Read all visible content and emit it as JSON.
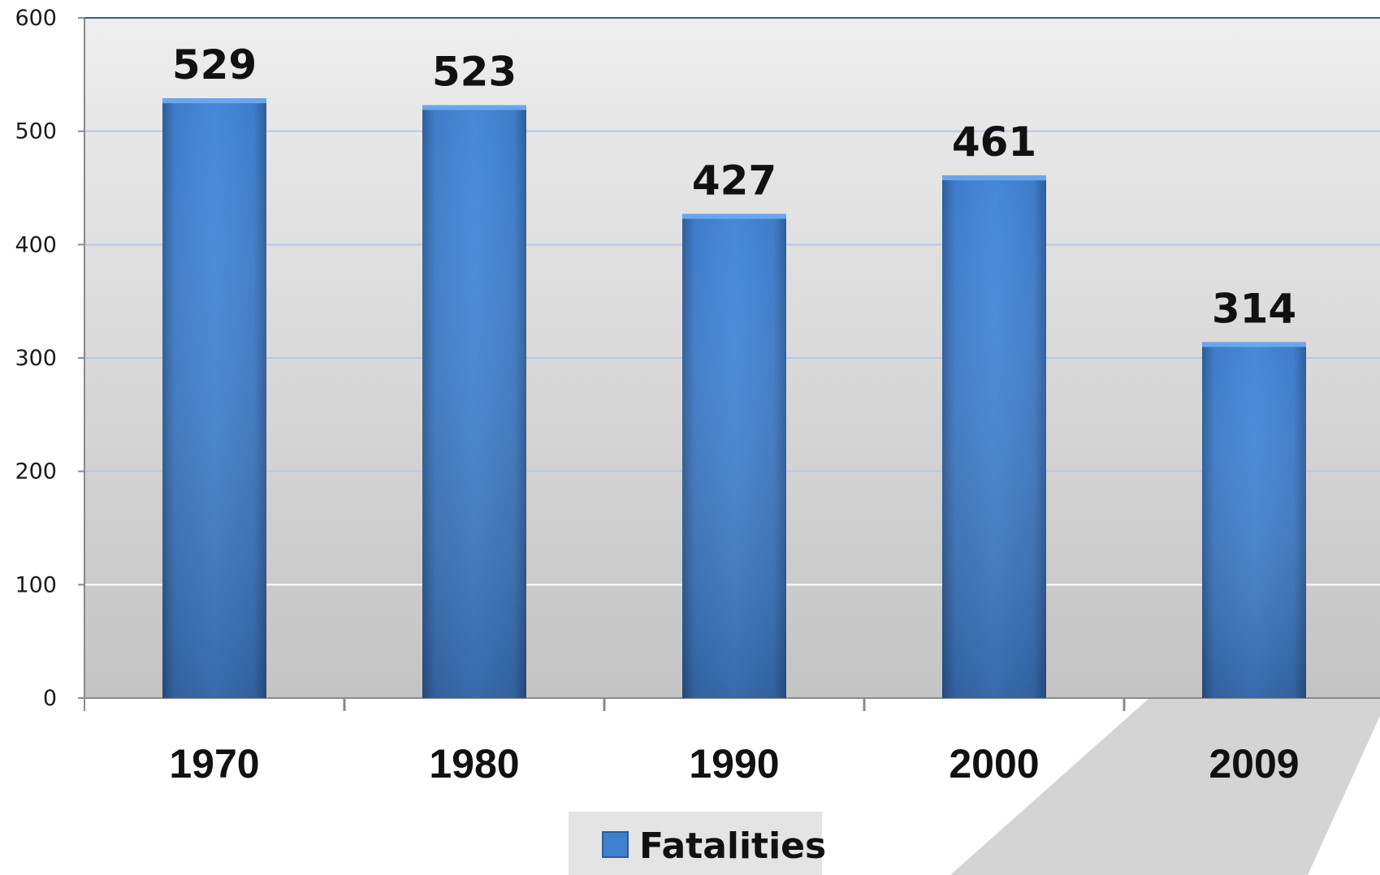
{
  "chart_data": {
    "type": "bar",
    "categories": [
      "1970",
      "1980",
      "1990",
      "2000",
      "2009"
    ],
    "series": [
      {
        "name": "Fatalities",
        "values": [
          529,
          523,
          427,
          461,
          314
        ]
      }
    ],
    "ylim": [
      0,
      600
    ],
    "yticks": [
      0,
      100,
      200,
      300,
      400,
      500,
      600
    ],
    "grid": true,
    "legend_position": "bottom-center",
    "colors": {
      "bar": "#3f7fcf",
      "bar_dark": "#2f5f9f",
      "grid": "#b8c8e8",
      "plot_bg_top": "#eeeeee",
      "plot_bg_bottom": "#c4c4c4",
      "axis": "#8a8a8a"
    }
  }
}
